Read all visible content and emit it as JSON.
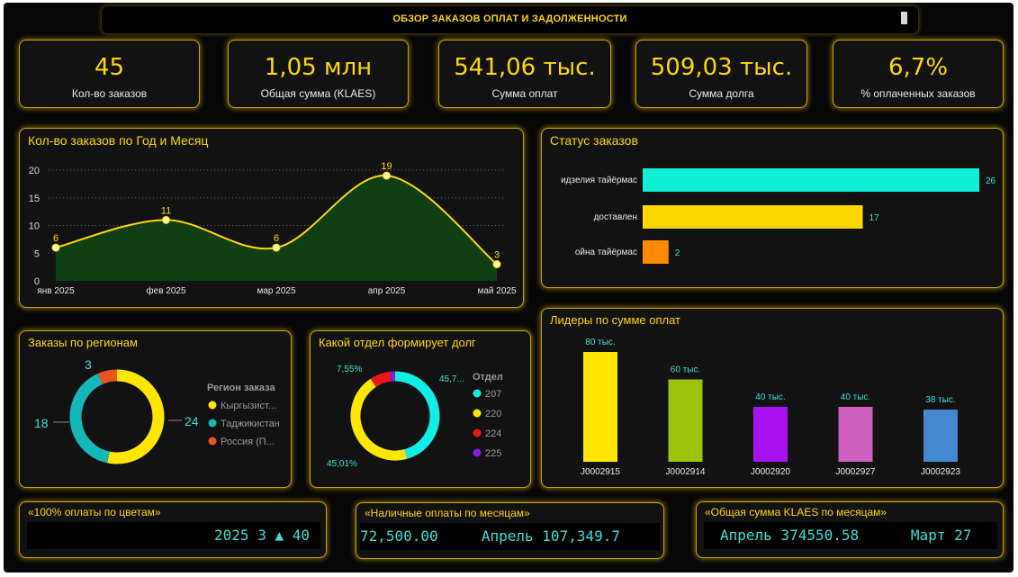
{
  "title": "ОБЗОР ЗАКАЗОВ ОПЛАТ  И ЗАДОЛЖЕННОСТИ",
  "kpis": [
    {
      "value": "45",
      "label": "Кол-во заказов"
    },
    {
      "value": "1,05 млн",
      "label": "Общая сумма (KLAES)"
    },
    {
      "value": "541,06 тыс.",
      "label": "Сумма оплат"
    },
    {
      "value": "509,03 тыс.",
      "label": "Сумма долга"
    },
    {
      "value": "6,7%",
      "label": "% оплаченных заказов"
    }
  ],
  "orders_chart": {
    "title": "Кол-во заказов по Год и Месяц",
    "chart_data": {
      "type": "area",
      "x": [
        "янв 2025",
        "фев 2025",
        "мар 2025",
        "апр 2025",
        "май 2025"
      ],
      "values": [
        6,
        11,
        6,
        19,
        3
      ],
      "ylim": [
        0,
        20
      ],
      "yticks": [
        0,
        5,
        10,
        15,
        20
      ],
      "grid": true,
      "colors": {
        "line": "#ffd700",
        "fill": "#0f3f12"
      }
    }
  },
  "status_chart": {
    "title": "Статус заказов",
    "chart_data": {
      "type": "bar",
      "orientation": "horizontal",
      "categories": [
        "идзелия тайёрмас",
        "доставлен",
        "ойна тайёрмас"
      ],
      "values": [
        26,
        17,
        2
      ],
      "colors": [
        "#10efd6",
        "#ffd700",
        "#ff8c00"
      ]
    }
  },
  "region_chart": {
    "title": "Заказы по регионам",
    "legend_title": "Регион заказа",
    "chart_data": {
      "type": "pie",
      "donut": true,
      "categories": [
        "Кыргызист...",
        "Таджикистан",
        "Россия (П..."
      ],
      "values": [
        24,
        18,
        3
      ],
      "colors": [
        "#ffe600",
        "#14b8b8",
        "#e8561c"
      ]
    }
  },
  "dept_chart": {
    "title": "Какой отдел формирует долг",
    "legend_title": "Отдел",
    "chart_data": {
      "type": "pie",
      "donut": true,
      "categories": [
        "207",
        "220",
        "224",
        "225"
      ],
      "values": [
        45.7,
        45.01,
        7.55,
        1.74
      ],
      "labels": [
        "45,7...",
        "45,01%",
        "7,55%",
        ""
      ],
      "colors": [
        "#10efe6",
        "#ffe600",
        "#e81818",
        "#8a18e0"
      ]
    }
  },
  "leaders_chart": {
    "title": "Лидеры по сумме оплат",
    "chart_data": {
      "type": "bar",
      "categories": [
        "J0002915",
        "J0002914",
        "J0002920",
        "J0002927",
        "J0002923"
      ],
      "values": [
        80,
        60,
        40,
        40,
        38
      ],
      "value_labels": [
        "80 тыс.",
        "60 тыс.",
        "40 тыс.",
        "40 тыс.",
        "38 тыс."
      ],
      "colors": [
        "#ffe600",
        "#9cc40a",
        "#a812f0",
        "#d060c0",
        "#4488d0"
      ]
    }
  },
  "bottom": [
    {
      "title": "«100% оплаты по цветам»",
      "text": "2025 3 ▲ 40"
    },
    {
      "title": "«Наличные оплаты по месяцам»",
      "text": "72,500.00     Апрель 107,349.7"
    },
    {
      "title": "«Общая сумма KLAES по месяцам»",
      "text": "Апрель 374550.58      Март 27"
    }
  ]
}
